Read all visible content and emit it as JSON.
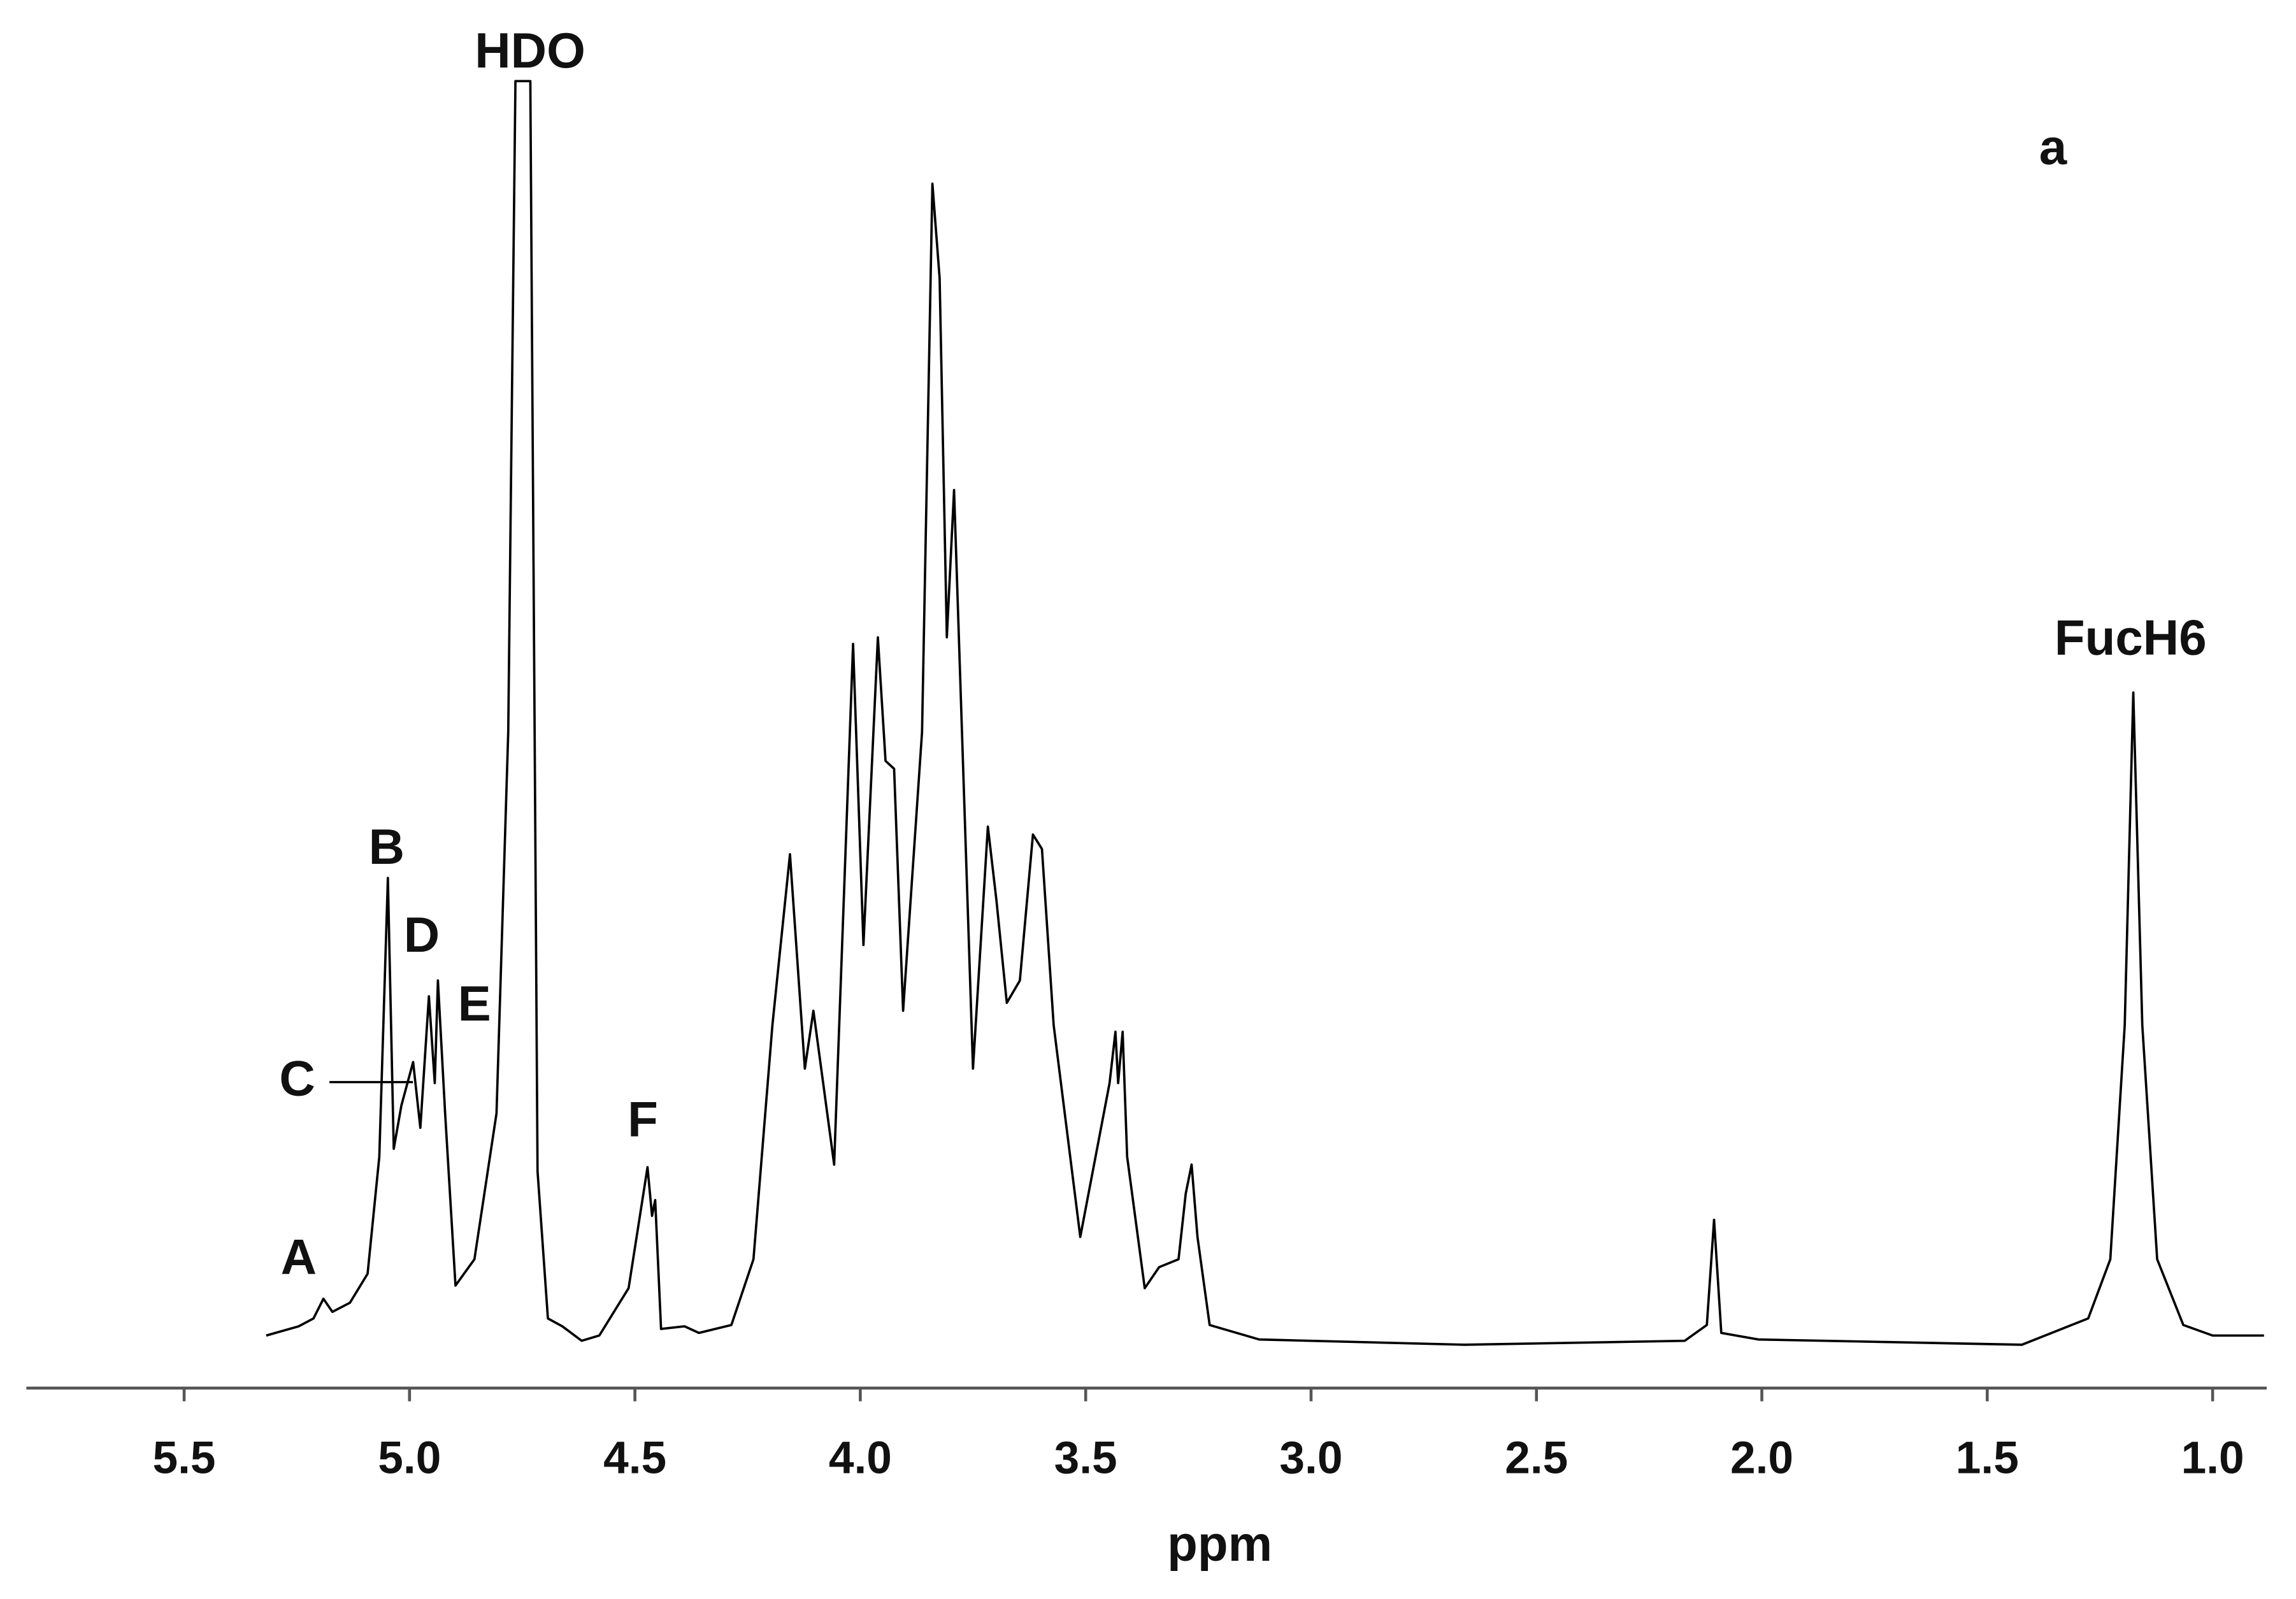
{
  "chart_data": {
    "type": "line",
    "x_label": "ppm",
    "xlim": [
      5.85,
      0.88
    ],
    "ylim": [
      0,
      100
    ],
    "xticks": [
      5.5,
      {
        "value": 5,
        "label": "5.0"
      },
      4.5,
      {
        "value": 4,
        "label": "4.0"
      },
      3.5,
      {
        "value": 3,
        "label": "3.0"
      },
      2.5,
      {
        "value": 2,
        "label": "2.0"
      },
      1.5,
      {
        "value": 1,
        "label": "1.0"
      }
    ],
    "color": "#000000",
    "annotations": [
      "HDO",
      "a",
      "B",
      "D",
      "E",
      "C",
      "F",
      "A",
      "FucH6"
    ],
    "x": [
      5.318,
      5.246,
      5.213,
      5.191,
      5.171,
      5.132,
      5.093,
      5.067,
      5.048,
      5.035,
      5.018,
      4.992,
      4.976,
      4.957,
      4.944,
      4.937,
      4.921,
      4.898,
      4.856,
      4.807,
      4.781,
      4.765,
      4.732,
      4.716,
      4.693,
      4.661,
      4.618,
      4.579,
      4.514,
      4.472,
      4.462,
      4.455,
      4.442,
      4.39,
      4.358,
      4.286,
      4.237,
      4.195,
      4.156,
      4.123,
      4.104,
      4.058,
      4.016,
      3.993,
      3.961,
      3.944,
      3.925,
      3.905,
      3.863,
      3.84,
      3.824,
      3.808,
      3.792,
      3.75,
      3.717,
      3.698,
      3.675,
      3.646,
      3.617,
      3.597,
      3.571,
      3.512,
      3.447,
      3.434,
      3.428,
      3.418,
      3.408,
      3.369,
      3.337,
      3.294,
      3.278,
      3.265,
      3.252,
      3.225,
      3.115,
      2.659,
      2.171,
      2.122,
      2.106,
      2.09,
      2.008,
      1.423,
      1.276,
      1.227,
      1.195,
      1.176,
      1.156,
      1.123,
      1.065,
      1.0,
      0.886
    ],
    "values": [
      4.0,
      4.7,
      5.3,
      6.8,
      5.8,
      6.5,
      8.7,
      17.6,
      38.8,
      18.2,
      21.5,
      24.8,
      19.8,
      29.8,
      23.2,
      31.0,
      20.9,
      7.8,
      9.8,
      20.9,
      49.9,
      99.4,
      99.4,
      16.5,
      5.3,
      4.7,
      3.6,
      4.0,
      7.6,
      16.8,
      13.1,
      14.3,
      4.5,
      4.7,
      4.2,
      4.8,
      9.8,
      27.6,
      40.6,
      24.3,
      28.7,
      17.0,
      56.6,
      33.7,
      57.1,
      47.7,
      47.1,
      28.7,
      49.9,
      91.6,
      84.4,
      57.1,
      68.3,
      24.3,
      42.7,
      37.1,
      29.3,
      31.0,
      42.1,
      41.0,
      27.6,
      11.5,
      23.2,
      27.1,
      23.2,
      27.1,
      17.6,
      7.6,
      9.2,
      9.8,
      14.8,
      17.0,
      11.5,
      4.8,
      3.7,
      3.3,
      3.6,
      4.8,
      12.8,
      4.2,
      3.7,
      3.3,
      5.3,
      9.8,
      27.6,
      52.9,
      27.6,
      9.8,
      4.8,
      4.0,
      4.0
    ]
  }
}
